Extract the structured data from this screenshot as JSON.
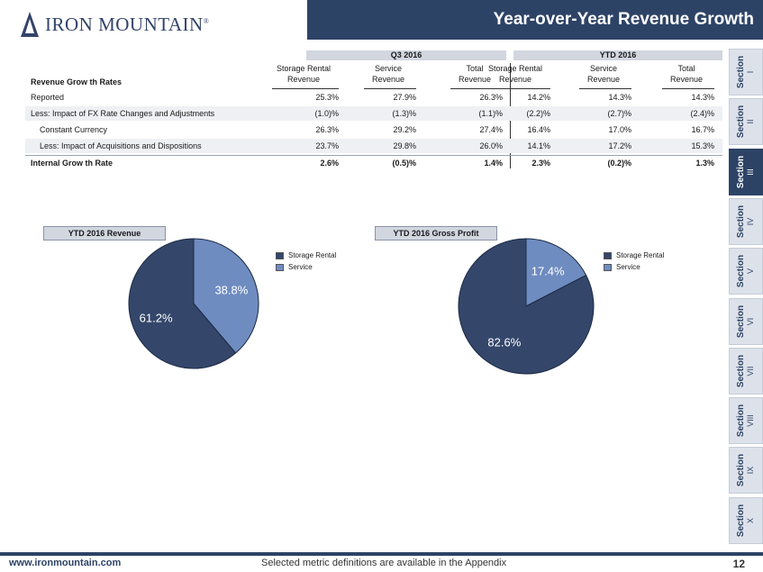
{
  "header": {
    "brand": "IRON MOUNTAIN",
    "brand_mark": "®",
    "title": "Year-over-Year Revenue Growth"
  },
  "sections": [
    {
      "word": "Section",
      "numeral": "I",
      "active": false
    },
    {
      "word": "Section",
      "numeral": "II",
      "active": false
    },
    {
      "word": "Section",
      "numeral": "III",
      "active": true
    },
    {
      "word": "Section",
      "numeral": "IV",
      "active": false
    },
    {
      "word": "Section",
      "numeral": "V",
      "active": false
    },
    {
      "word": "Section",
      "numeral": "VI",
      "active": false
    },
    {
      "word": "Section",
      "numeral": "VII",
      "active": false
    },
    {
      "word": "Section",
      "numeral": "VIII",
      "active": false
    },
    {
      "word": "Section",
      "numeral": "IX",
      "active": false
    },
    {
      "word": "Section",
      "numeral": "X",
      "active": false
    }
  ],
  "table": {
    "row_header_label": "Revenue Grow th Rates",
    "groups": [
      "Q3 2016",
      "YTD 2016"
    ],
    "columns": [
      {
        "line1": "Storage Rental",
        "line2": "Revenue"
      },
      {
        "line1": "Service",
        "line2": "Revenue"
      },
      {
        "line1": "Total",
        "line2": "Revenue"
      },
      {
        "line1": "Storage Rental",
        "line2": "Revenue"
      },
      {
        "line1": "Service",
        "line2": "Revenue"
      },
      {
        "line1": "Total",
        "line2": "Revenue"
      }
    ],
    "rows": [
      {
        "label": "Reported",
        "values": [
          "25.3%",
          "27.9%",
          "26.3%",
          "14.2%",
          "14.3%",
          "14.3%"
        ]
      },
      {
        "label": "Less: Impact of FX Rate Changes and Adjustments",
        "values": [
          "(1.0)%",
          "(1.3)%",
          "(1.1)%",
          "(2.2)%",
          "(2.7)%",
          "(2.4)%"
        ]
      },
      {
        "label": "Constant Currency",
        "values": [
          "26.3%",
          "29.2%",
          "27.4%",
          "16.4%",
          "17.0%",
          "16.7%"
        ]
      },
      {
        "label": "Less: Impact of Acquisitions and Dispositions",
        "values": [
          "23.7%",
          "29.8%",
          "26.0%",
          "14.1%",
          "17.2%",
          "15.3%"
        ]
      },
      {
        "label": "Internal Grow th Rate",
        "values": [
          "2.6%",
          "(0.5)%",
          "1.4%",
          "2.3%",
          "(0.2)%",
          "1.3%"
        ]
      }
    ]
  },
  "chart_data": [
    {
      "type": "pie",
      "title": "YTD 2016 Revenue",
      "categories": [
        "Storage Rental",
        "Service"
      ],
      "values": [
        61.2,
        38.8
      ],
      "labels": [
        "61.2%",
        "38.8%"
      ],
      "colors": [
        "#34476b",
        "#6f8cc0"
      ],
      "legend_position": "right"
    },
    {
      "type": "pie",
      "title": "YTD 2016 Gross Profit",
      "categories": [
        "Storage Rental",
        "Service"
      ],
      "values": [
        82.6,
        17.4
      ],
      "labels": [
        "82.6%",
        "17.4%"
      ],
      "colors": [
        "#34476b",
        "#6f8cc0"
      ],
      "legend_position": "right"
    }
  ],
  "footer": {
    "url": "www.ironmountain.com",
    "note": "Selected metric definitions are available in the Appendix",
    "page": "12"
  }
}
